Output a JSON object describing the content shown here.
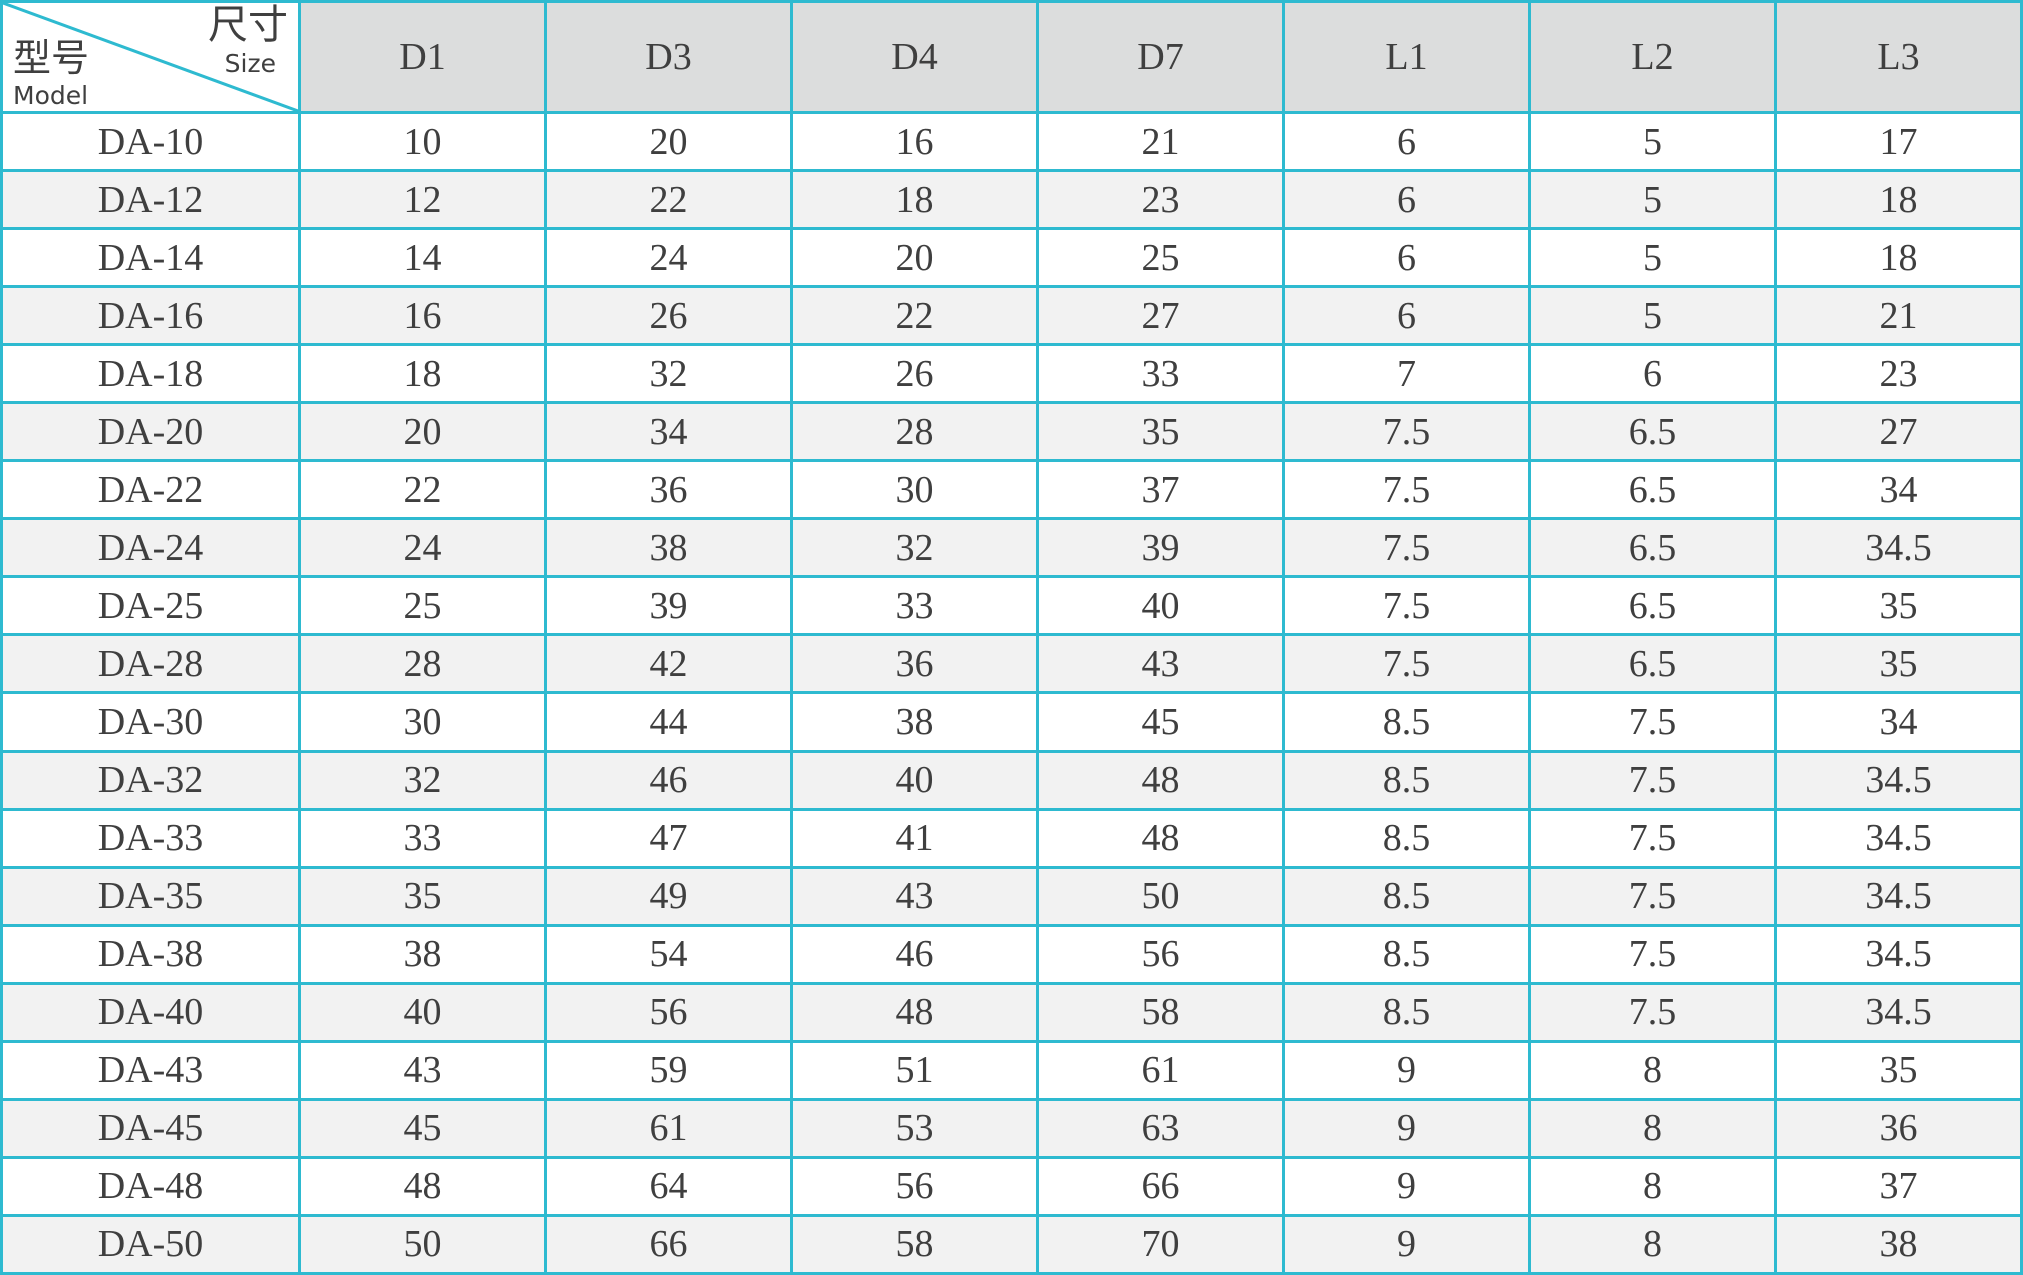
{
  "header": {
    "corner": {
      "model_cn": "型号",
      "model_en": "Model",
      "size_cn": "尺寸",
      "size_en": "Size"
    },
    "columns": [
      "D1",
      "D3",
      "D4",
      "D7",
      "L1",
      "L2",
      "L3"
    ]
  },
  "rows": [
    [
      "DA-10",
      "10",
      "20",
      "16",
      "21",
      "6",
      "5",
      "17"
    ],
    [
      "DA-12",
      "12",
      "22",
      "18",
      "23",
      "6",
      "5",
      "18"
    ],
    [
      "DA-14",
      "14",
      "24",
      "20",
      "25",
      "6",
      "5",
      "18"
    ],
    [
      "DA-16",
      "16",
      "26",
      "22",
      "27",
      "6",
      "5",
      "21"
    ],
    [
      "DA-18",
      "18",
      "32",
      "26",
      "33",
      "7",
      "6",
      "23"
    ],
    [
      "DA-20",
      "20",
      "34",
      "28",
      "35",
      "7.5",
      "6.5",
      "27"
    ],
    [
      "DA-22",
      "22",
      "36",
      "30",
      "37",
      "7.5",
      "6.5",
      "34"
    ],
    [
      "DA-24",
      "24",
      "38",
      "32",
      "39",
      "7.5",
      "6.5",
      "34.5"
    ],
    [
      "DA-25",
      "25",
      "39",
      "33",
      "40",
      "7.5",
      "6.5",
      "35"
    ],
    [
      "DA-28",
      "28",
      "42",
      "36",
      "43",
      "7.5",
      "6.5",
      "35"
    ],
    [
      "DA-30",
      "30",
      "44",
      "38",
      "45",
      "8.5",
      "7.5",
      "34"
    ],
    [
      "DA-32",
      "32",
      "46",
      "40",
      "48",
      "8.5",
      "7.5",
      "34.5"
    ],
    [
      "DA-33",
      "33",
      "47",
      "41",
      "48",
      "8.5",
      "7.5",
      "34.5"
    ],
    [
      "DA-35",
      "35",
      "49",
      "43",
      "50",
      "8.5",
      "7.5",
      "34.5"
    ],
    [
      "DA-38",
      "38",
      "54",
      "46",
      "56",
      "8.5",
      "7.5",
      "34.5"
    ],
    [
      "DA-40",
      "40",
      "56",
      "48",
      "58",
      "8.5",
      "7.5",
      "34.5"
    ],
    [
      "DA-43",
      "43",
      "59",
      "51",
      "61",
      "9",
      "8",
      "35"
    ],
    [
      "DA-45",
      "45",
      "61",
      "53",
      "63",
      "9",
      "8",
      "36"
    ],
    [
      "DA-48",
      "48",
      "64",
      "56",
      "66",
      "9",
      "8",
      "37"
    ],
    [
      "DA-50",
      "50",
      "66",
      "58",
      "70",
      "9",
      "8",
      "38"
    ]
  ],
  "colors": {
    "border": "#2ebad0",
    "header_bg": "#dcdddd",
    "stripe_bg": "#f2f2f2",
    "text": "#3f3f3f"
  }
}
